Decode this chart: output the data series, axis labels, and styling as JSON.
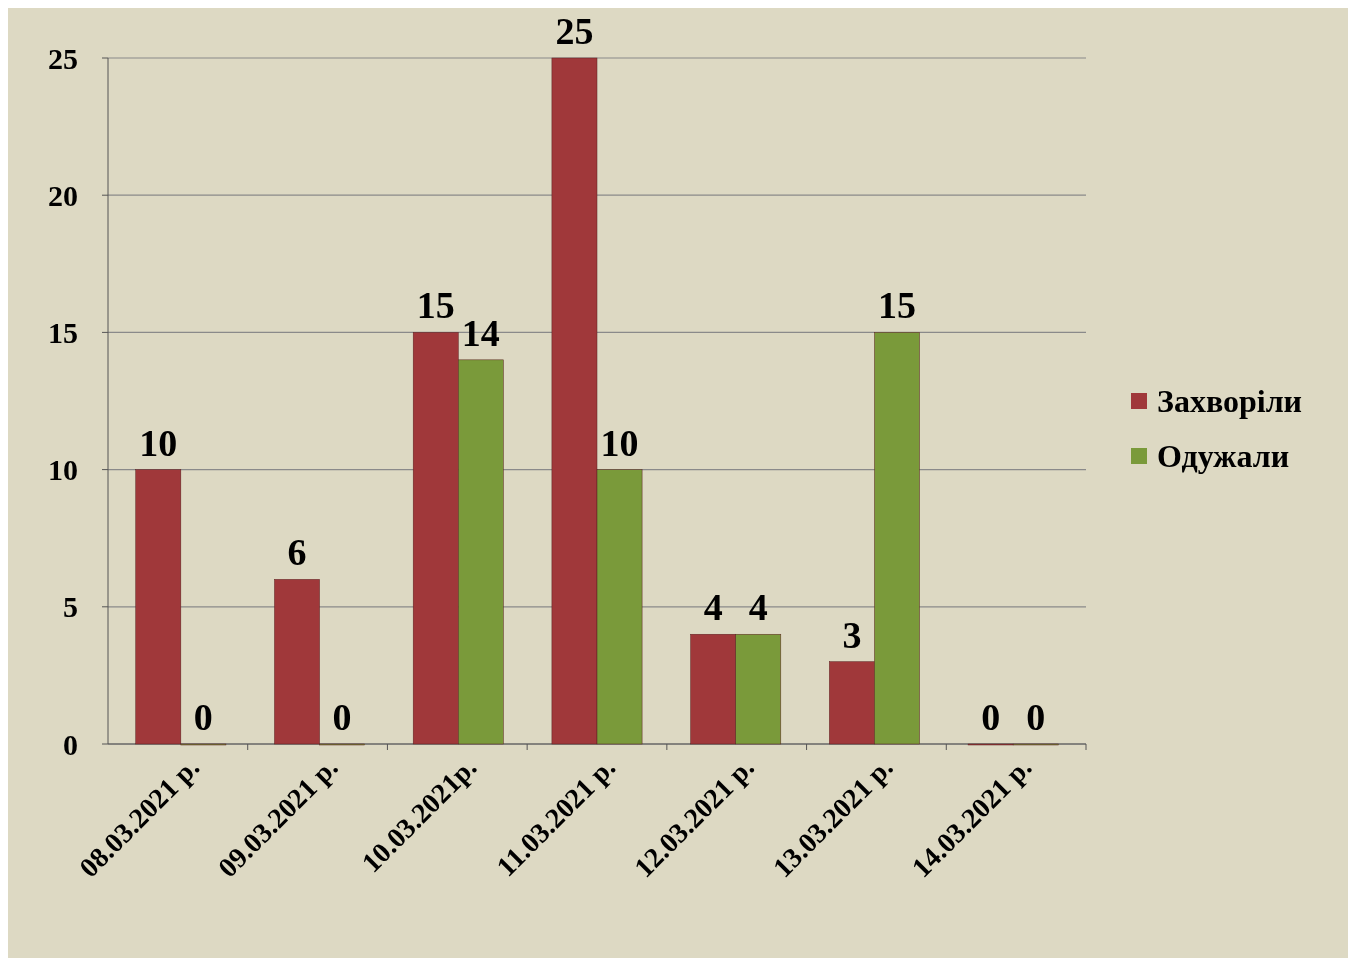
{
  "chart_data": {
    "type": "bar",
    "categories": [
      "08.03.2021 р.",
      "09.03.2021 р.",
      "10.03.2021р.",
      "11.03.2021 р.",
      "12.03.2021 р.",
      "13.03.2021 р.",
      "14.03.2021 р."
    ],
    "series": [
      {
        "name": "Захворіли",
        "color": "#a0383a",
        "values": [
          10,
          6,
          15,
          25,
          4,
          3,
          0
        ]
      },
      {
        "name": "Одужали",
        "color": "#7a9a3a",
        "values": [
          0,
          0,
          14,
          10,
          4,
          15,
          0
        ]
      }
    ],
    "ylim": [
      0,
      25
    ],
    "yticks": [
      0,
      5,
      10,
      15,
      20,
      25
    ],
    "grid": "y",
    "legend": "right",
    "data_labels": true
  }
}
